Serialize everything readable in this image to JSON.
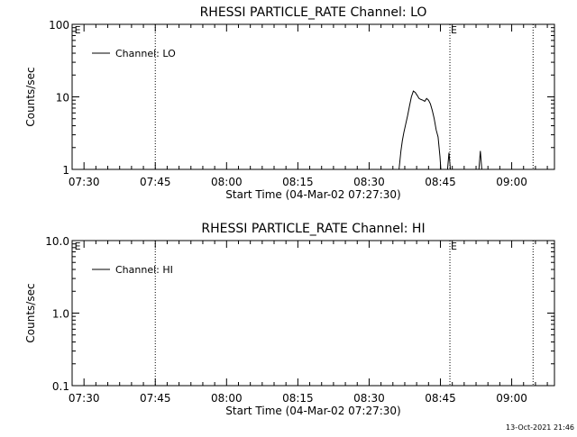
{
  "footer_timestamp": "13-Oct-2021 21:46",
  "chart_data": [
    {
      "type": "line",
      "title": "RHESSI PARTICLE_RATE Channel: LO",
      "xlabel": "Start Time (04-Mar-02 07:27:30)",
      "ylabel": "Counts/sec",
      "yscale": "log",
      "ylim": [
        1,
        100
      ],
      "ytick_values": [
        1,
        10,
        100
      ],
      "ytick_labels": [
        "1",
        "10",
        "100"
      ],
      "xlim_minutes": [
        0,
        101.5
      ],
      "xtick_values": [
        2.5,
        17.5,
        32.5,
        47.5,
        62.5,
        77.5,
        92.5
      ],
      "xtick_labels": [
        "07:30",
        "07:45",
        "08:00",
        "08:15",
        "08:30",
        "08:45",
        "09:00"
      ],
      "vlines": [
        17.5,
        79.5,
        97.0
      ],
      "markers": [
        {
          "label": "E",
          "x": 0.3
        },
        {
          "label": "E",
          "x": 79.5
        }
      ],
      "legend": {
        "label": "Channel: LO",
        "position": "top-left"
      },
      "series": [
        {
          "name": "Channel: LO",
          "segments": [
            [
              [
                68.8,
                1
              ],
              [
                69.2,
                1.8
              ],
              [
                69.5,
                2.5
              ],
              [
                69.8,
                3.2
              ],
              [
                70.2,
                4.2
              ],
              [
                70.6,
                5.5
              ],
              [
                71.0,
                7.5
              ],
              [
                71.4,
                10
              ],
              [
                71.8,
                12
              ],
              [
                72.2,
                11.5
              ],
              [
                72.6,
                10.5
              ],
              [
                73.0,
                9.5
              ],
              [
                73.4,
                9.2
              ],
              [
                73.8,
                9.0
              ],
              [
                74.2,
                8.7
              ],
              [
                74.6,
                9.5
              ],
              [
                75.0,
                9.0
              ],
              [
                75.4,
                8.0
              ],
              [
                75.8,
                6.5
              ],
              [
                76.2,
                5.0
              ],
              [
                76.6,
                3.5
              ],
              [
                77.0,
                2.8
              ],
              [
                77.4,
                1.5
              ],
              [
                77.6,
                1
              ]
            ],
            [
              [
                79.0,
                1
              ],
              [
                79.3,
                1.7
              ],
              [
                79.6,
                1
              ]
            ],
            [
              [
                85.6,
                1
              ],
              [
                85.9,
                1.8
              ],
              [
                86.2,
                1
              ]
            ]
          ]
        }
      ]
    },
    {
      "type": "line",
      "title": "RHESSI PARTICLE_RATE Channel: HI",
      "xlabel": "Start Time (04-Mar-02 07:27:30)",
      "ylabel": "Counts/sec",
      "yscale": "log",
      "ylim": [
        0.1,
        10
      ],
      "ytick_values": [
        0.1,
        1,
        10
      ],
      "ytick_labels": [
        "0.1",
        "1.0",
        "10.0"
      ],
      "xlim_minutes": [
        0,
        101.5
      ],
      "xtick_values": [
        2.5,
        17.5,
        32.5,
        47.5,
        62.5,
        77.5,
        92.5
      ],
      "xtick_labels": [
        "07:30",
        "07:45",
        "08:00",
        "08:15",
        "08:30",
        "08:45",
        "09:00"
      ],
      "vlines": [
        17.5,
        79.5,
        97.0
      ],
      "markers": [
        {
          "label": "E",
          "x": 0.3
        },
        {
          "label": "E",
          "x": 79.5
        }
      ],
      "legend": {
        "label": "Channel: HI",
        "position": "top-left"
      },
      "series": [
        {
          "name": "Channel: HI",
          "segments": []
        }
      ]
    }
  ]
}
